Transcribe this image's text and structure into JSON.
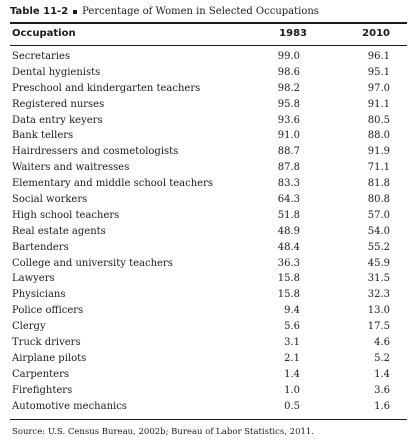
{
  "table": {
    "number": "Table 11-2",
    "title": "Percentage of Women in Selected Occupations",
    "columns": [
      "Occupation",
      "1983",
      "2010"
    ],
    "rows": [
      [
        "Secretaries",
        "99.0",
        "96.1"
      ],
      [
        "Dental hygienists",
        "98.6",
        "95.1"
      ],
      [
        "Preschool and kindergarten teachers",
        "98.2",
        "97.0"
      ],
      [
        "Registered nurses",
        "95.8",
        "91.1"
      ],
      [
        "Data entry keyers",
        "93.6",
        "80.5"
      ],
      [
        "Bank tellers",
        "91.0",
        "88.0"
      ],
      [
        "Hairdressers and cosmetologists",
        "88.7",
        "91.9"
      ],
      [
        "Waiters and waitresses",
        "87.8",
        "71.1"
      ],
      [
        "Elementary and middle school teachers",
        "83.3",
        "81.8"
      ],
      [
        "Social workers",
        "64.3",
        "80.8"
      ],
      [
        "High school teachers",
        "51.8",
        "57.0"
      ],
      [
        "Real estate agents",
        "48.9",
        "54.0"
      ],
      [
        "Bartenders",
        "48.4",
        "55.2"
      ],
      [
        "College and university teachers",
        "36.3",
        "45.9"
      ],
      [
        "Lawyers",
        "15.8",
        "31.5"
      ],
      [
        "Physicians",
        "15.8",
        "32.3"
      ],
      [
        "Police officers",
        "9.4",
        "13.0"
      ],
      [
        "Clergy",
        "5.6",
        "17.5"
      ],
      [
        "Truck drivers",
        "3.1",
        "4.6"
      ],
      [
        "Airplane pilots",
        "2.1",
        "5.2"
      ],
      [
        "Carpenters",
        "1.4",
        "1.4"
      ],
      [
        "Firefighters",
        "1.0",
        "3.6"
      ],
      [
        "Automotive mechanics",
        "0.5",
        "1.6"
      ]
    ],
    "source": "Source: U.S. Census Bureau, 2002b; Bureau of Labor Statistics, 2011."
  }
}
